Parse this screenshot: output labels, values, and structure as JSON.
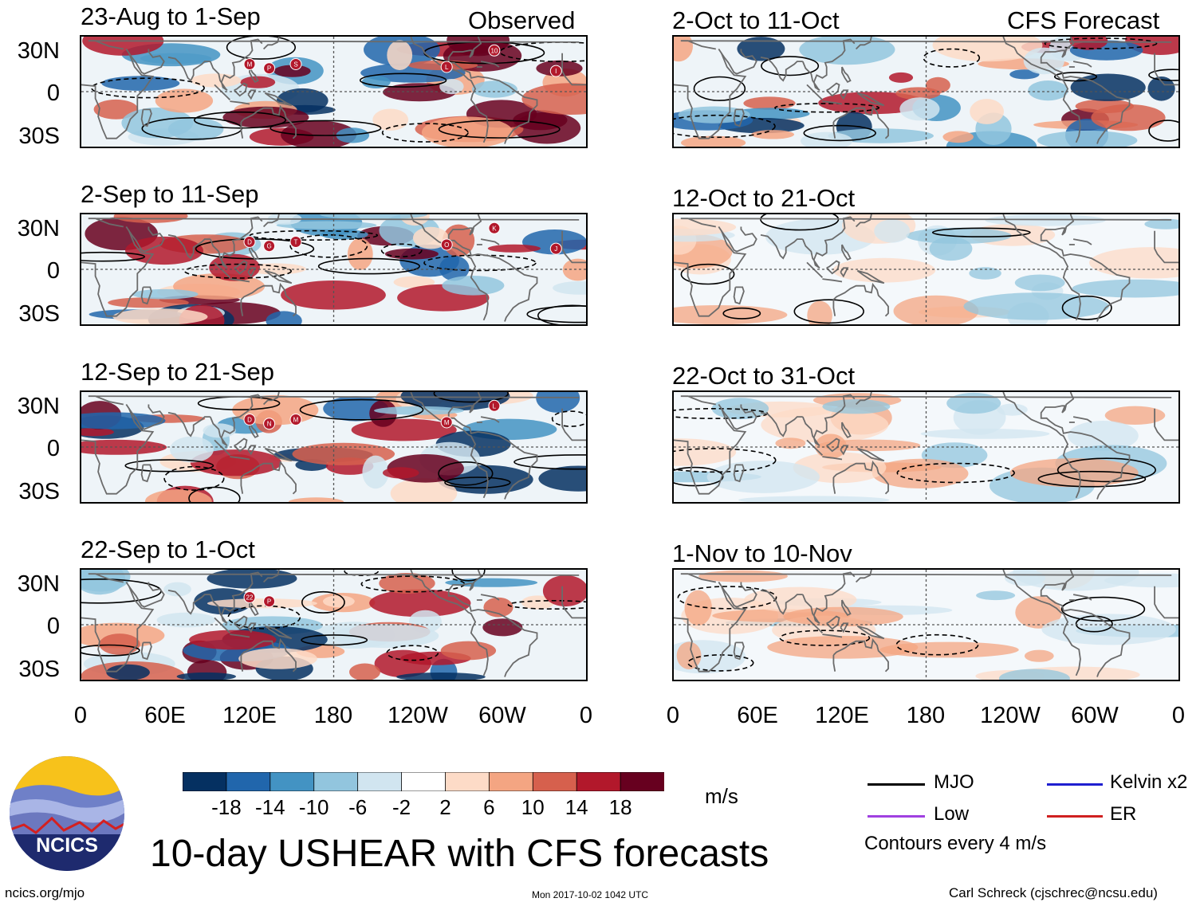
{
  "chart_data": {
    "type": "heatmap",
    "title": "10-day USHEAR with CFS forecasts",
    "units": "m/s",
    "contour_note": "Contours every 4 m/s",
    "x_ticks": [
      "0",
      "60E",
      "120E",
      "180",
      "120W",
      "60W",
      "0"
    ],
    "y_ticks": [
      "30N",
      "0",
      "30S"
    ],
    "columns": [
      {
        "label": "Observed",
        "panels": [
          "23-Aug to 1-Sep",
          "2-Sep to 11-Sep",
          "12-Sep to 21-Sep",
          "22-Sep to 1-Oct"
        ]
      },
      {
        "label": "CFS Forecast",
        "panels": [
          "2-Oct to 11-Oct",
          "12-Oct to 21-Oct",
          "22-Oct to 31-Oct",
          "1-Nov to 10-Nov"
        ]
      }
    ],
    "colorbar": {
      "ticks": [
        "-18",
        "-14",
        "-10",
        "-6",
        "-2",
        "2",
        "6",
        "10",
        "14",
        "18"
      ],
      "colors": [
        "#053061",
        "#2166ac",
        "#4393c3",
        "#92c5de",
        "#d1e5f0",
        "#ffffff",
        "#fddbc7",
        "#f4a582",
        "#d6604d",
        "#b2182b",
        "#67001f"
      ]
    },
    "legend": [
      {
        "name": "MJO",
        "color": "#000000"
      },
      {
        "name": "Kelvin x2",
        "color": "#1f1fd0"
      },
      {
        "name": "Low",
        "color": "#a040e0"
      },
      {
        "name": "ER",
        "color": "#d02020"
      }
    ],
    "storm_markers": [
      [
        "M",
        "P",
        "S",
        "L",
        "10",
        "I"
      ],
      [
        "D",
        "G",
        "T",
        "O",
        "K",
        "J"
      ],
      [
        "D",
        "N",
        "M",
        "M",
        "L"
      ],
      [
        "22",
        "P"
      ]
    ]
  },
  "footer": {
    "logo_text": "NCICS",
    "url": "ncics.org/mjo",
    "timestamp": "Mon 2017-10-02 1042 UTC",
    "author": "Carl Schreck (cjschrec@ncsu.edu)"
  }
}
